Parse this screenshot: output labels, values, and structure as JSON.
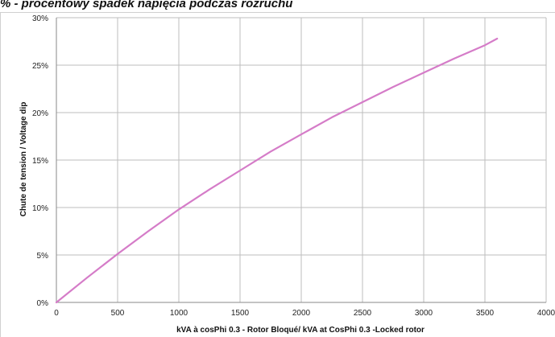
{
  "header": {
    "title": "% - procentowy spadek napięcia podczas rozruchu"
  },
  "chart_data": {
    "type": "line",
    "title": "",
    "xlabel": "kVA à cosPhi 0.3 - Rotor Bloqué/ kVA at CosPhi 0.3 -Locked rotor",
    "ylabel": "Chute de tension / Voltage dip",
    "xlim": [
      0,
      4000
    ],
    "ylim": [
      0,
      30
    ],
    "x_ticks": [
      "0",
      "500",
      "1000",
      "1500",
      "2000",
      "2500",
      "3000",
      "3500",
      "4000"
    ],
    "y_ticks": [
      "0%",
      "5%",
      "10%",
      "15%",
      "20%",
      "25%",
      "30%"
    ],
    "grid": true,
    "line_color": "#d57cc8",
    "series": [
      {
        "x": [
          0,
          250,
          500,
          750,
          1000,
          1250,
          1500,
          1750,
          2000,
          2250,
          2500,
          2750,
          3000,
          3250,
          3500,
          3600
        ],
        "values": [
          0,
          2.6,
          5.1,
          7.5,
          9.8,
          11.9,
          13.9,
          15.9,
          17.7,
          19.5,
          21.1,
          22.7,
          24.2,
          25.7,
          27.1,
          27.8
        ]
      }
    ]
  }
}
